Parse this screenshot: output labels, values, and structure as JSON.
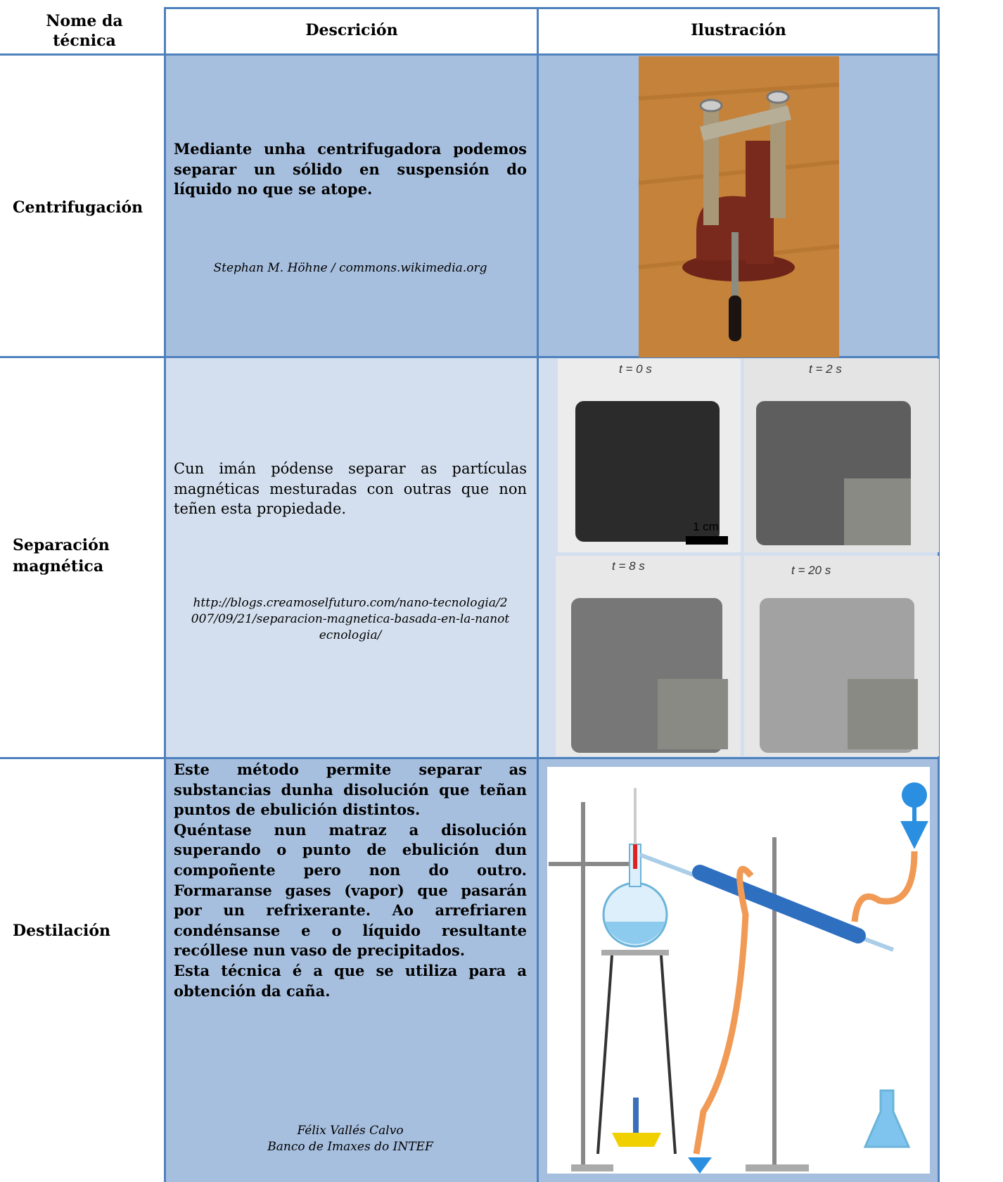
{
  "table": {
    "headers": [
      "Nome da técnica",
      "Descrición",
      "Ilustración"
    ],
    "rows": [
      {
        "name": "Centrifugación",
        "description": [
          "Mediante unha centrifugadora podemos separar un sólido en suspensión do líquido no que se atope."
        ],
        "credit": [
          "Stephan M. Höhne / commons.wikimedia.org"
        ]
      },
      {
        "name": "Separación magnética",
        "description": [
          "Cun imán pódense separar as partículas magnéticas mesturadas con outras que non teñen esta propiedade."
        ],
        "credit": [
          "http://blogs.creamoselfuturo.com/nano-tecnologia/2007/09/21/separacion-magnetica-basada-en-la-nanotecnologia/"
        ]
      },
      {
        "name": "Destilación",
        "description": [
          "Este método permite separar as substancias dunha disolución que teñan puntos de ebulición distintos.",
          "Quéntase nun matraz a disolución superando o punto de ebulición dun compoñente pero non do outro. Formaranse gases (vapor) que pasarán por un refrixerante. Ao arrefriaren condénsanse e o líquido resultante recóllese nun vaso de precipitados.",
          "Esta técnica é a que se utiliza para a obtención da caña."
        ],
        "credit": [
          "Félix Vallés Calvo",
          "Banco de Imaxes do INTEF"
        ]
      }
    ]
  },
  "magnetic_image": {
    "labels": [
      "t = 0 s",
      "t = 2 s",
      "t = 8 s",
      "t = 20 s"
    ],
    "scale": "1 cm"
  }
}
